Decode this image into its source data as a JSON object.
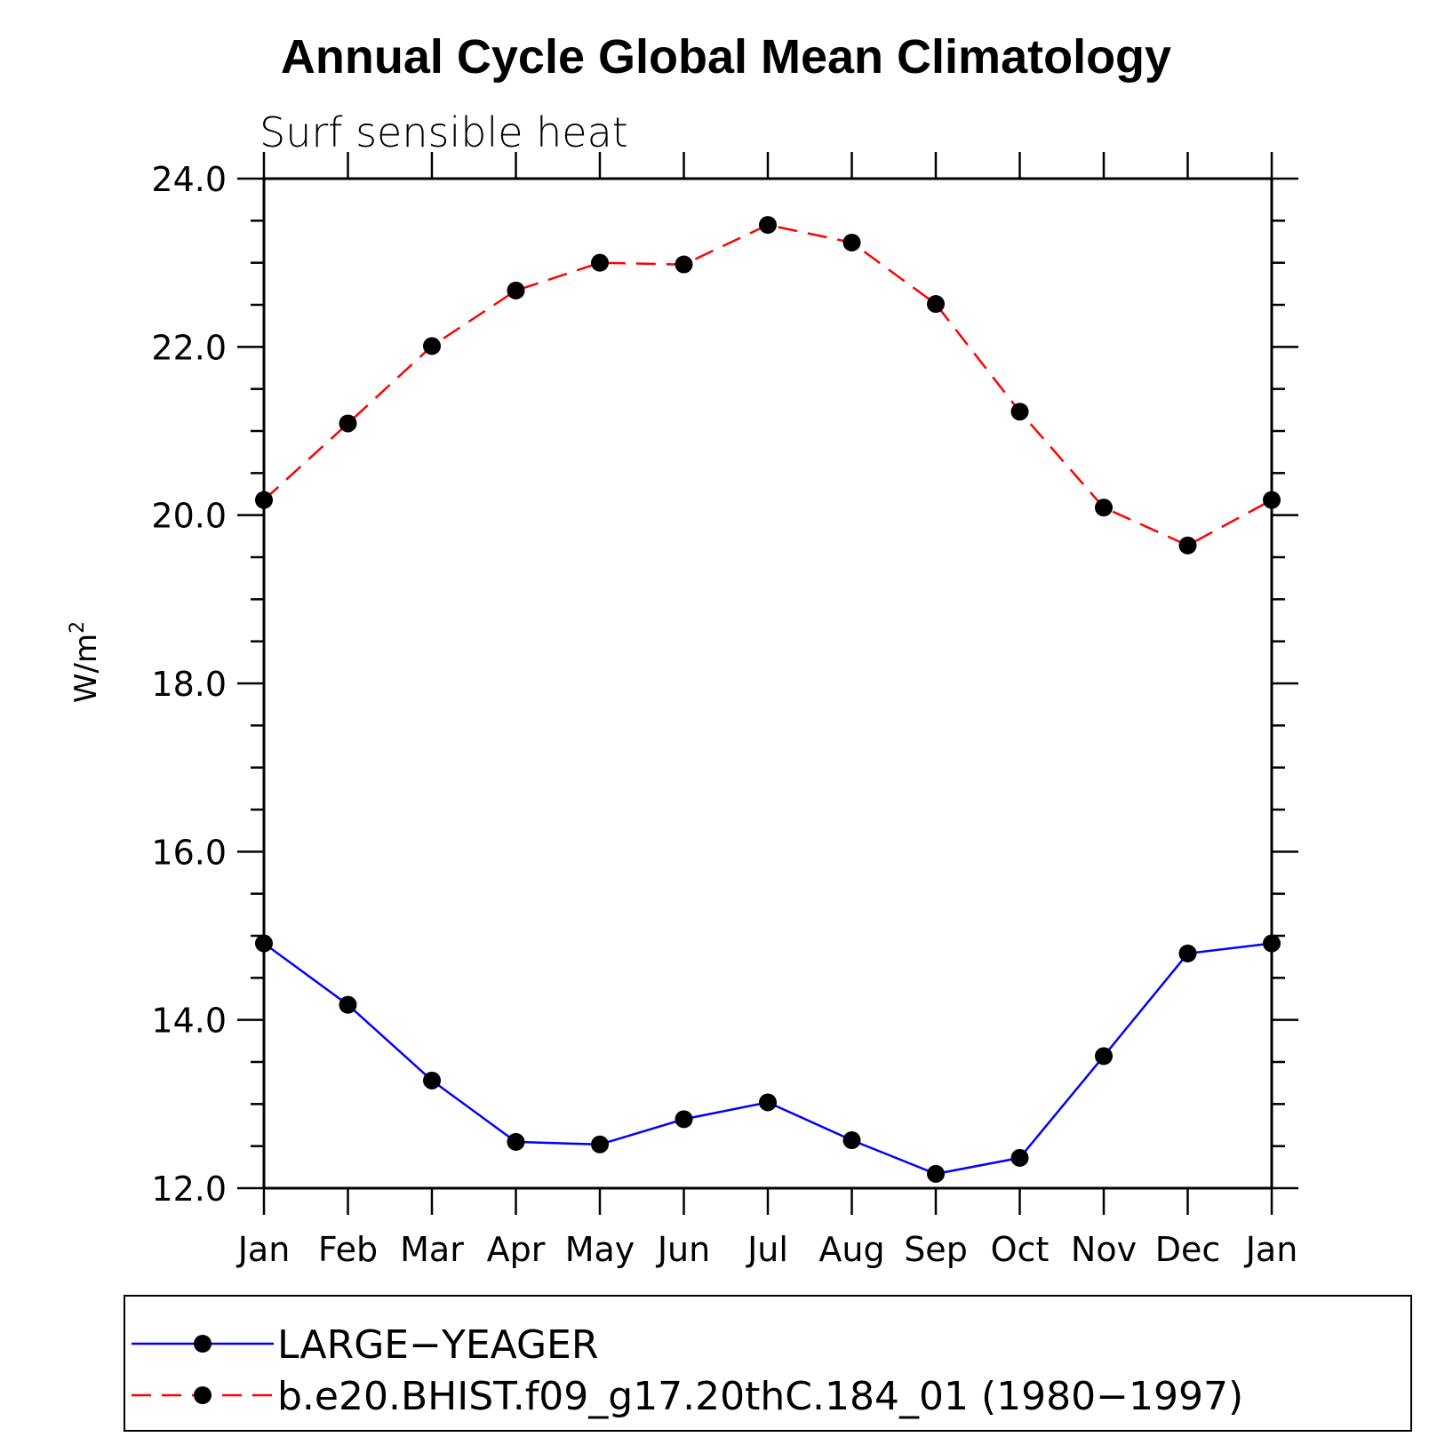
{
  "chart_data": {
    "type": "line",
    "title": "Annual Cycle Global Mean Climatology",
    "subtitle": "Surf sensible heat",
    "ylabel_base": "W/m",
    "ylabel_sup": "2",
    "ylim": [
      12.0,
      24.0
    ],
    "yticks": [
      "12.0",
      "14.0",
      "16.0",
      "18.0",
      "20.0",
      "22.0",
      "24.0"
    ],
    "categories": [
      "Jan",
      "Feb",
      "Mar",
      "Apr",
      "May",
      "Jun",
      "Jul",
      "Aug",
      "Sep",
      "Oct",
      "Nov",
      "Dec",
      "Jan"
    ],
    "series": [
      {
        "name": "LARGE−YEAGER",
        "color": "#0000ff",
        "style": "solid",
        "values": [
          14.91,
          14.18,
          13.28,
          12.55,
          12.52,
          12.82,
          13.02,
          12.57,
          12.17,
          12.36,
          13.57,
          14.79,
          14.91
        ]
      },
      {
        "name": "b.e20.BHIST.f09_g17.20thC.184_01 (1980−1997)",
        "color": "#ff0000",
        "style": "dashed",
        "values": [
          20.18,
          21.09,
          22.01,
          22.67,
          23.0,
          22.98,
          23.45,
          23.24,
          22.51,
          21.23,
          20.09,
          19.64,
          20.18
        ]
      }
    ],
    "legend_position": "bottom",
    "grid": false
  }
}
